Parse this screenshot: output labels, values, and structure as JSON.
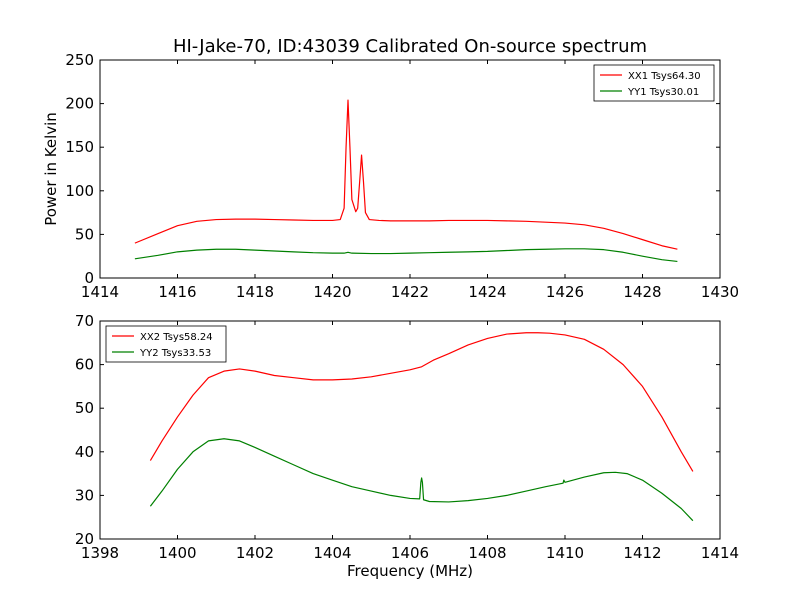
{
  "chart_data": [
    {
      "type": "line",
      "title": "HI-Jake-70, ID:43039 Calibrated On-source spectrum",
      "xlabel": "",
      "ylabel": "Power in Kelvin",
      "xlim": [
        1414,
        1430
      ],
      "ylim": [
        0,
        250
      ],
      "xticks": [
        1414,
        1416,
        1418,
        1420,
        1422,
        1424,
        1426,
        1428,
        1430
      ],
      "yticks": [
        0,
        50,
        100,
        150,
        200,
        250
      ],
      "legend_position": "top-right",
      "series": [
        {
          "name": "XX1 Tsys64.30",
          "color": "#ff0000",
          "x": [
            1414.9,
            1415.5,
            1416.0,
            1416.5,
            1417.0,
            1417.5,
            1418.0,
            1418.5,
            1419.0,
            1419.5,
            1420.0,
            1420.2,
            1420.3,
            1420.35,
            1420.4,
            1420.45,
            1420.5,
            1420.6,
            1420.65,
            1420.7,
            1420.75,
            1420.8,
            1420.85,
            1420.95,
            1421.2,
            1421.5,
            1422.0,
            1422.5,
            1423.0,
            1423.5,
            1424.0,
            1424.5,
            1425.0,
            1425.5,
            1426.0,
            1426.5,
            1427.0,
            1427.5,
            1428.0,
            1428.5,
            1428.9
          ],
          "values": [
            40,
            51,
            60,
            65,
            67,
            67.5,
            67.5,
            67,
            66.5,
            66,
            66,
            67,
            80,
            150,
            204,
            150,
            90,
            76,
            80,
            110,
            141,
            110,
            75,
            67,
            66,
            65.5,
            65.5,
            65.5,
            66,
            66,
            66,
            65.5,
            65,
            64,
            63,
            61,
            57,
            51,
            44,
            37,
            33
          ]
        },
        {
          "name": "YY1 Tsys30.01",
          "color": "#008000",
          "x": [
            1414.9,
            1415.5,
            1416.0,
            1416.5,
            1417.0,
            1417.5,
            1418.0,
            1418.5,
            1419.0,
            1419.5,
            1420.0,
            1420.3,
            1420.4,
            1420.5,
            1421.0,
            1421.5,
            1422.0,
            1422.5,
            1423.0,
            1423.5,
            1424.0,
            1424.5,
            1425.0,
            1425.5,
            1426.0,
            1426.5,
            1427.0,
            1427.5,
            1428.0,
            1428.5,
            1428.9
          ],
          "values": [
            22,
            26,
            30,
            32,
            33,
            33,
            32,
            31,
            30,
            29,
            28.5,
            28.5,
            29.5,
            28.5,
            28,
            28,
            28.5,
            29,
            29.5,
            30,
            30.5,
            31.5,
            32.5,
            33,
            33.5,
            33.5,
            32.5,
            29.5,
            25,
            21,
            19
          ]
        }
      ]
    },
    {
      "type": "line",
      "title": "",
      "xlabel": "Frequency (MHz)",
      "ylabel": "",
      "xlim": [
        1398,
        1414
      ],
      "ylim": [
        20,
        70
      ],
      "xticks": [
        1398,
        1400,
        1402,
        1404,
        1406,
        1408,
        1410,
        1412,
        1414
      ],
      "yticks": [
        20,
        30,
        40,
        50,
        60,
        70
      ],
      "legend_position": "top-left",
      "series": [
        {
          "name": "XX2 Tsys58.24",
          "color": "#ff0000",
          "x": [
            1399.3,
            1399.6,
            1400.0,
            1400.4,
            1400.8,
            1401.2,
            1401.6,
            1402.0,
            1402.5,
            1403.0,
            1403.5,
            1404.0,
            1404.5,
            1405.0,
            1405.5,
            1406.0,
            1406.3,
            1406.6,
            1407.0,
            1407.5,
            1408.0,
            1408.5,
            1409.0,
            1409.3,
            1409.6,
            1410.0,
            1410.5,
            1411.0,
            1411.5,
            1412.0,
            1412.5,
            1413.0,
            1413.3
          ],
          "values": [
            38,
            42.5,
            48,
            53,
            57,
            58.5,
            59,
            58.5,
            57.5,
            57,
            56.5,
            56.5,
            56.7,
            57.2,
            58,
            58.8,
            59.5,
            61,
            62.5,
            64.5,
            66,
            67,
            67.3,
            67.3,
            67.2,
            66.8,
            65.8,
            63.5,
            60,
            55,
            48,
            40,
            35.5
          ]
        },
        {
          "name": "YY2 Tsys33.53",
          "color": "#008000",
          "x": [
            1399.3,
            1399.6,
            1400.0,
            1400.4,
            1400.8,
            1401.2,
            1401.6,
            1402.0,
            1402.5,
            1403.0,
            1403.5,
            1404.0,
            1404.5,
            1405.0,
            1405.5,
            1406.0,
            1406.25,
            1406.28,
            1406.3,
            1406.32,
            1406.35,
            1406.5,
            1407.0,
            1407.5,
            1408.0,
            1408.5,
            1409.0,
            1409.5,
            1409.95,
            1409.97,
            1410.0,
            1410.5,
            1411.0,
            1411.3,
            1411.6,
            1412.0,
            1412.5,
            1413.0,
            1413.3
          ],
          "values": [
            27.5,
            31,
            36,
            40,
            42.5,
            43,
            42.5,
            41,
            39,
            37,
            35,
            33.5,
            32,
            31,
            30,
            29.3,
            29.2,
            33,
            34,
            33,
            29,
            28.6,
            28.5,
            28.8,
            29.3,
            30,
            31,
            32,
            32.8,
            33.5,
            33,
            34.2,
            35.2,
            35.3,
            35,
            33.5,
            30.5,
            27,
            24.2
          ]
        }
      ]
    }
  ]
}
